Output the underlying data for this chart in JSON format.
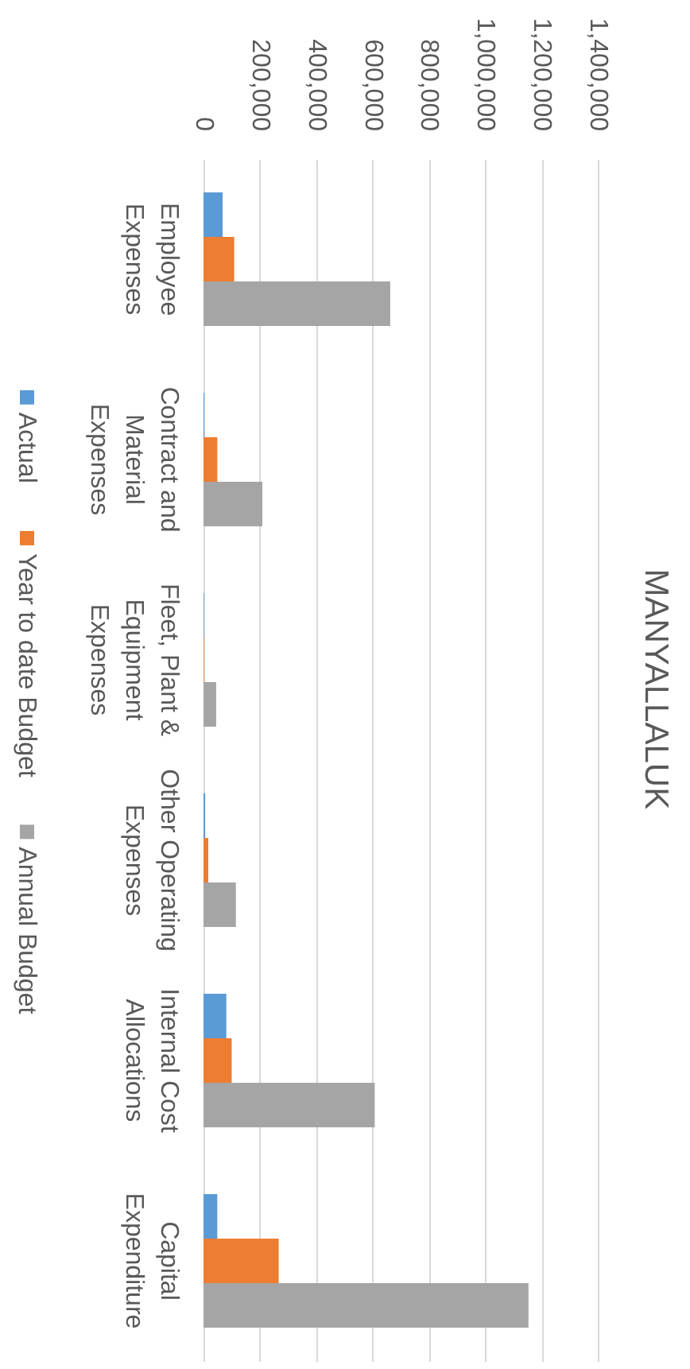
{
  "chart_data": {
    "type": "bar",
    "title": "MANYALLALUK",
    "orientation": "horizontal",
    "categories": [
      "Employee Expenses",
      "Contract and Material Expenses",
      "Fleet, Plant & Equipment Expenses",
      "Other Operating Expenses",
      "Internal Cost Allocations",
      "Capital Expenditure"
    ],
    "series": [
      {
        "name": "Actual",
        "color": "#5b9bd5",
        "values": [
          68000,
          3000,
          2000,
          6000,
          81000,
          49000
        ]
      },
      {
        "name": "Year to date Budget",
        "color": "#ed7d31",
        "values": [
          109000,
          49000,
          2000,
          17000,
          100000,
          267000
        ]
      },
      {
        "name": "Annual Budget",
        "color": "#a5a5a5",
        "values": [
          663000,
          209000,
          45000,
          115000,
          608000,
          1154000
        ]
      }
    ],
    "xlim": [
      0,
      1400000
    ],
    "xticks": [
      0,
      {
        "value": 200000,
        "label": "200,000"
      },
      {
        "value": 400000,
        "label": "400,000"
      },
      {
        "value": 600000,
        "label": "600,000"
      },
      {
        "value": 800000,
        "label": "800,000"
      },
      {
        "value": 1000000,
        "label": "1,000,000"
      },
      {
        "value": 1200000,
        "label": "1,200,000"
      },
      {
        "value": 1400000,
        "label": "1,400,000"
      }
    ],
    "grid": "x",
    "legend": "left"
  }
}
